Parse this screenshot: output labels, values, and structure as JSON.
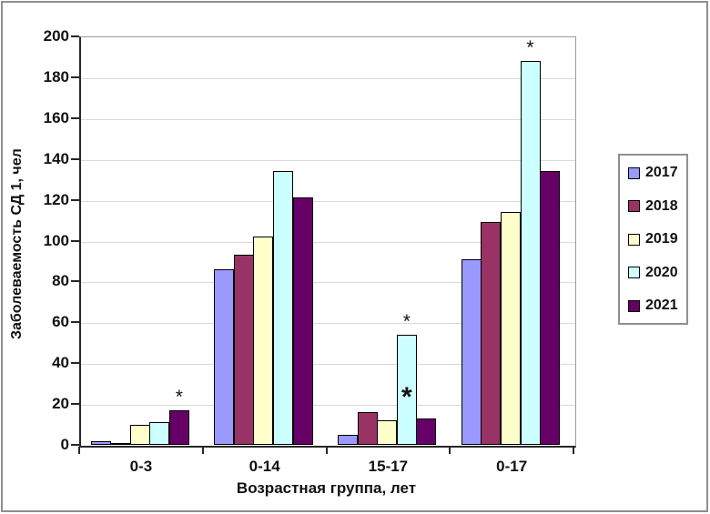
{
  "chart_data": {
    "type": "bar",
    "title": "",
    "xlabel": "Возрастная группа, лет",
    "ylabel": "Заболеваемость СД 1, чел",
    "categories": [
      "0-3",
      "0-14",
      "15-17",
      "0-17"
    ],
    "series": [
      {
        "name": "2017",
        "color": "#9999FF",
        "values": [
          2,
          86,
          5,
          91
        ]
      },
      {
        "name": "2018",
        "color": "#993366",
        "values": [
          1,
          93,
          16,
          109
        ]
      },
      {
        "name": "2019",
        "color": "#FFFFCC",
        "values": [
          10,
          102,
          12,
          114
        ]
      },
      {
        "name": "2020",
        "color": "#CCFFFF",
        "values": [
          11,
          134,
          54,
          188
        ]
      },
      {
        "name": "2021",
        "color": "#660066",
        "values": [
          17,
          121,
          13,
          134
        ]
      }
    ],
    "ylim": [
      0,
      200
    ],
    "ytick_step": 20,
    "yticks": [
      0,
      20,
      40,
      60,
      80,
      100,
      120,
      140,
      160,
      180,
      200
    ],
    "grid": true,
    "legend_position": "right",
    "annotations": [
      {
        "category": "0-3",
        "series": "2021",
        "symbol": "*",
        "placement": "above"
      },
      {
        "category": "15-17",
        "series": "2020",
        "symbol": "*",
        "placement": "above"
      },
      {
        "category": "15-17",
        "series": "2020",
        "symbol": "*",
        "placement": "inside",
        "at_value": 23,
        "bold": true
      },
      {
        "category": "0-17",
        "series": "2020",
        "symbol": "*",
        "placement": "above"
      }
    ],
    "colors": {
      "background": "#ffffff",
      "grid": "#d9d9d9",
      "axis": "#262626",
      "plot_border": "#9b9b9b",
      "frame": "#8e8e8e",
      "bar_border": "#000000"
    }
  }
}
